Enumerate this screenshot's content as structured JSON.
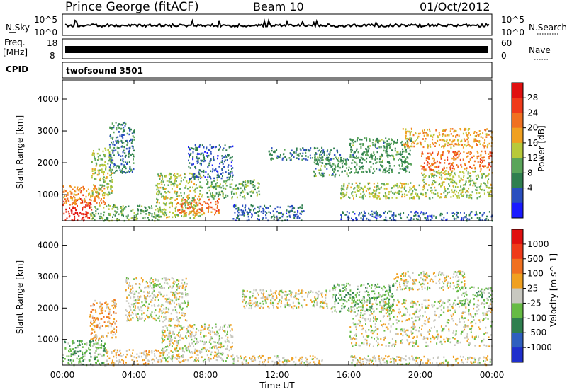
{
  "header": {
    "station": "Prince George (fitACF)",
    "beam": "Beam 10",
    "date": "01/Oct/2012"
  },
  "noise_panel": {
    "left_label": "N.Sky",
    "right_label": "N.Search",
    "left_ticks": [
      "10^5",
      "10^0"
    ],
    "right_ticks": [
      "10^5",
      "10^0"
    ]
  },
  "freq_panel": {
    "label_line1": "Freq.",
    "label_line2": "[MHz]",
    "right_label": "Nave",
    "left_ticks": [
      "18",
      "8"
    ],
    "right_ticks": [
      "60",
      "0"
    ]
  },
  "cpid": {
    "label": "CPID",
    "value": "twofsound 3501"
  },
  "chart_data": [
    {
      "type": "heatmap",
      "name": "power",
      "ylabel": "Slant Range [km]",
      "ylim": [
        180,
        4600
      ],
      "yticks": [
        1000,
        2000,
        3000,
        4000
      ],
      "xlim": [
        0,
        24
      ],
      "colorbar": {
        "label": "Power [dB]",
        "ticks": [
          "28",
          "24",
          "20",
          "16",
          "12",
          "8",
          "4"
        ],
        "colors": [
          "#1a1aff",
          "#2a4fbf",
          "#2f7f4f",
          "#5aa55a",
          "#b8c93a",
          "#f0a020",
          "#f07020",
          "#ef3a1a",
          "#e01010"
        ],
        "range": [
          0,
          30
        ]
      },
      "regions": [
        {
          "t0": 0.0,
          "t1": 1.6,
          "r0": 200,
          "r1": 900,
          "level": 28
        },
        {
          "t0": 0.0,
          "t1": 2.4,
          "r0": 700,
          "r1": 1300,
          "level": 20
        },
        {
          "t0": 1.5,
          "t1": 5.5,
          "r0": 200,
          "r1": 700,
          "level": 12
        },
        {
          "t0": 1.6,
          "t1": 2.8,
          "r0": 1000,
          "r1": 2500,
          "level": 14
        },
        {
          "t0": 2.6,
          "t1": 4.0,
          "r0": 1700,
          "r1": 3300,
          "level": 8
        },
        {
          "t0": 5.2,
          "t1": 7.8,
          "r0": 300,
          "r1": 1700,
          "level": 14
        },
        {
          "t0": 6.4,
          "t1": 8.8,
          "r0": 400,
          "r1": 900,
          "level": 22
        },
        {
          "t0": 7.0,
          "t1": 9.5,
          "r0": 1500,
          "r1": 2600,
          "level": 6
        },
        {
          "t0": 8.0,
          "t1": 11.0,
          "r0": 900,
          "r1": 1500,
          "level": 12
        },
        {
          "t0": 9.5,
          "t1": 13.5,
          "r0": 200,
          "r1": 700,
          "level": 6
        },
        {
          "t0": 11.5,
          "t1": 15.5,
          "r0": 2100,
          "r1": 2500,
          "level": 8
        },
        {
          "t0": 14.0,
          "t1": 16.0,
          "r0": 1600,
          "r1": 2200,
          "level": 10
        },
        {
          "t0": 15.5,
          "t1": 24.0,
          "r0": 900,
          "r1": 1400,
          "level": 14
        },
        {
          "t0": 15.5,
          "t1": 24.0,
          "r0": 200,
          "r1": 500,
          "level": 6
        },
        {
          "t0": 16.0,
          "t1": 19.5,
          "r0": 1700,
          "r1": 2800,
          "level": 10
        },
        {
          "t0": 19.0,
          "t1": 24.0,
          "r0": 2500,
          "r1": 3100,
          "level": 18
        },
        {
          "t0": 20.0,
          "t1": 24.0,
          "r0": 1800,
          "r1": 2400,
          "level": 22
        },
        {
          "t0": 20.0,
          "t1": 24.0,
          "r0": 1400,
          "r1": 1800,
          "level": 14
        }
      ]
    },
    {
      "type": "heatmap",
      "name": "velocity",
      "ylabel": "Slant Range [km]",
      "xlabel": "Time UT",
      "ylim": [
        180,
        4600
      ],
      "yticks": [
        1000,
        2000,
        3000,
        4000
      ],
      "xlim": [
        0,
        24
      ],
      "xticks": [
        "00:00",
        "04:00",
        "08:00",
        "12:00",
        "16:00",
        "20:00",
        "00:00"
      ],
      "colorbar": {
        "label": "Velocity [m s^-1]",
        "ticks": [
          "1000",
          "500",
          "100",
          "25",
          "-25",
          "-100",
          "-500",
          "-1000"
        ],
        "colors": [
          "#1f2fcc",
          "#2f5fbf",
          "#2f7f4f",
          "#66bb44",
          "#c8c8c0",
          "#f0a020",
          "#f07020",
          "#ef3a1a",
          "#e01010"
        ],
        "range": [
          -1200,
          1200
        ]
      },
      "regions": [
        {
          "t0": 0.0,
          "t1": 2.4,
          "r0": 200,
          "r1": 1000,
          "level": -300
        },
        {
          "t0": 1.5,
          "t1": 3.0,
          "r0": 1000,
          "r1": 2300,
          "level": 300
        },
        {
          "t0": 2.4,
          "t1": 5.5,
          "r0": 200,
          "r1": 700,
          "level": 150
        },
        {
          "t0": 3.5,
          "t1": 7.0,
          "r0": 1600,
          "r1": 3000,
          "level": 0
        },
        {
          "t0": 5.5,
          "t1": 9.5,
          "r0": 300,
          "r1": 1500,
          "level": 0
        },
        {
          "t0": 9.5,
          "t1": 14.5,
          "r0": 200,
          "r1": 500,
          "level": 60
        },
        {
          "t0": 10.0,
          "t1": 15.0,
          "r0": 2000,
          "r1": 2600,
          "level": 0
        },
        {
          "t0": 15.0,
          "t1": 18.5,
          "r0": 1900,
          "r1": 2800,
          "level": -300
        },
        {
          "t0": 16.0,
          "t1": 24.0,
          "r0": 800,
          "r1": 2300,
          "level": 0
        },
        {
          "t0": 18.5,
          "t1": 22.5,
          "r0": 2600,
          "r1": 3200,
          "level": 60
        },
        {
          "t0": 22.0,
          "t1": 24.0,
          "r0": 2100,
          "r1": 2700,
          "level": -200
        },
        {
          "t0": 16.0,
          "t1": 24.0,
          "r0": 200,
          "r1": 500,
          "level": 60
        }
      ]
    }
  ]
}
